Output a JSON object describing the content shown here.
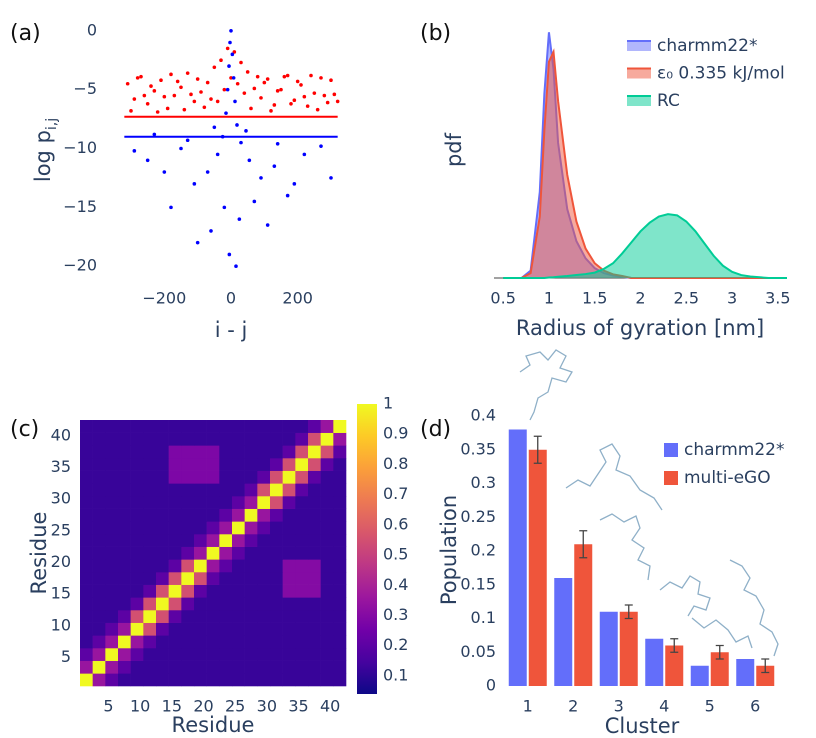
{
  "chart_data": [
    {
      "type": "scatter",
      "label": "(a)",
      "x_label": "i - j",
      "y_label": "log p",
      "y_label_sub": "i,j",
      "xlim": [
        -360,
        360
      ],
      "ylim": [
        -21,
        1
      ],
      "xticks": [
        {
          "value": -200,
          "label": "−200"
        },
        0,
        200
      ],
      "yticks": [
        0,
        {
          "value": -5,
          "label": "−5"
        },
        {
          "value": -10,
          "label": "−10"
        },
        {
          "value": -15,
          "label": "−15"
        },
        {
          "value": -20,
          "label": "−20"
        }
      ],
      "series": [
        {
          "color": "#ff0000",
          "x": [
            -310,
            -290,
            -270,
            -250,
            -230,
            -210,
            -190,
            -170,
            -150,
            -130,
            -110,
            -90,
            -70,
            -50,
            -30,
            -10,
            10,
            30,
            50,
            70,
            90,
            110,
            130,
            150,
            170,
            190,
            210,
            230,
            250,
            270,
            290,
            310,
            -300,
            -280,
            -260,
            -240,
            -220,
            -200,
            -180,
            -160,
            -140,
            -120,
            -100,
            -80,
            -60,
            -40,
            -20,
            0,
            20,
            40,
            60,
            80,
            100,
            120,
            140,
            160,
            180,
            200,
            220,
            240,
            260,
            280,
            300,
            320
          ],
          "values": [
            -4.5,
            -5.8,
            -3.9,
            -6.2,
            -5.1,
            -4.2,
            -6.6,
            -5.5,
            -4.8,
            -3.6,
            -6.0,
            -5.2,
            -4.4,
            -3.1,
            -2.5,
            -1.5,
            -1.8,
            -2.7,
            -3.5,
            -4.9,
            -5.7,
            -4.1,
            -6.3,
            -5.0,
            -3.8,
            -5.9,
            -4.6,
            -6.4,
            -5.3,
            -4.0,
            -6.1,
            -5.4,
            -6.8,
            -4.0,
            -5.5,
            -4.7,
            -6.9,
            -5.6,
            -3.7,
            -4.3,
            -6.7,
            -5.4,
            -4.1,
            -6.5,
            -5.8,
            -6.0,
            -5.0,
            -4.0,
            -4.5,
            -5.3,
            -6.6,
            -3.9,
            -4.4,
            -6.8,
            -5.1,
            -3.9,
            -6.2,
            -4.3,
            -5.6,
            -3.8,
            -6.7,
            -5.5,
            -4.2,
            -6.0
          ]
        },
        {
          "color": "#0000ff",
          "x": [
            0,
            -3,
            4,
            -6,
            8,
            -10,
            12,
            -15,
            18,
            -25,
            30,
            -40,
            55,
            -70,
            90,
            -110,
            130,
            -150,
            170,
            -200,
            220,
            -250,
            270,
            -290,
            300,
            -20,
            25,
            -60,
            70,
            -100,
            110,
            -5,
            15,
            -180,
            190,
            45,
            -50,
            -130,
            140,
            -230
          ],
          "values": [
            0,
            -1,
            -2,
            -3,
            -4,
            -5,
            -6,
            -7,
            -8,
            -9,
            -9.5,
            -10.5,
            -11,
            -12,
            -12.5,
            -13,
            -11.5,
            -10,
            -14,
            -12,
            -10.5,
            -11,
            -9.8,
            -10.2,
            -12.5,
            -15,
            -16,
            -17,
            -14.5,
            -18,
            -16.5,
            -19,
            -20,
            -15,
            -13,
            -8.5,
            -8.2,
            -9.3,
            -9.6,
            -8.8
          ]
        },
        {
          "type": "line",
          "color": "#ff0000",
          "x": [
            -320,
            320
          ],
          "values": [
            -7.3,
            -7.3
          ]
        },
        {
          "type": "line",
          "color": "#0000ff",
          "x": [
            -320,
            320
          ],
          "values": [
            -9.0,
            -9.0
          ]
        }
      ]
    },
    {
      "type": "line",
      "label": "(b)",
      "x_label": "Radius of gyration [nm]",
      "y_label": "pdf",
      "legend": "top-right",
      "xlim": [
        0.4,
        3.6
      ],
      "ylim": [
        0,
        1.05
      ],
      "xticks": [
        0.5,
        1,
        1.5,
        2,
        2.5,
        3,
        3.5
      ],
      "x": [
        0.5,
        0.7,
        0.8,
        0.9,
        0.95,
        1.0,
        1.05,
        1.1,
        1.2,
        1.3,
        1.4,
        1.5,
        1.6,
        1.7,
        1.8,
        1.9,
        2.0,
        2.1,
        2.2,
        2.3,
        2.4,
        2.5,
        2.6,
        2.7,
        2.8,
        2.9,
        3.0,
        3.1,
        3.2,
        3.4,
        3.6
      ],
      "series": [
        {
          "name": "charmm22*",
          "color": "#636efa",
          "values": [
            0,
            0,
            0.03,
            0.35,
            0.75,
            1.0,
            0.85,
            0.55,
            0.28,
            0.15,
            0.08,
            0.04,
            0.02,
            0.01,
            0.005,
            0,
            0,
            0,
            0,
            0,
            0,
            0,
            0,
            0,
            0,
            0,
            0,
            0,
            0,
            0,
            0
          ]
        },
        {
          "name": "ε₀ 0.335 kJ/mol",
          "color": "#ef553b",
          "values": [
            0,
            0,
            0.02,
            0.25,
            0.6,
            0.88,
            0.92,
            0.72,
            0.42,
            0.23,
            0.12,
            0.06,
            0.03,
            0.015,
            0.008,
            0,
            0,
            0,
            0,
            0,
            0,
            0,
            0,
            0,
            0,
            0,
            0,
            0,
            0,
            0,
            0
          ]
        },
        {
          "name": "RC",
          "color": "#00cc96",
          "values": [
            0,
            0,
            0,
            0,
            0,
            0.002,
            0.003,
            0.005,
            0.008,
            0.012,
            0.016,
            0.022,
            0.037,
            0.06,
            0.1,
            0.145,
            0.19,
            0.225,
            0.25,
            0.26,
            0.255,
            0.23,
            0.19,
            0.14,
            0.09,
            0.05,
            0.025,
            0.012,
            0.006,
            0,
            0
          ]
        }
      ]
    },
    {
      "type": "heatmap",
      "label": "(c)",
      "x_label": "Residue",
      "y_label": "Residue",
      "xlim": [
        0.5,
        42.5
      ],
      "ylim": [
        0.5,
        42.5
      ],
      "xticks": [
        5,
        10,
        15,
        20,
        25,
        30,
        35,
        40
      ],
      "yticks": [
        5,
        10,
        15,
        20,
        25,
        30,
        35,
        40
      ],
      "xbins": [
        0.5,
        2.5,
        4.5,
        6.5,
        8.5,
        10.5,
        12.5,
        14.5,
        16.5,
        18.5,
        20.5,
        22.5,
        24.5,
        26.5,
        28.5,
        30.5,
        32.5,
        34.5,
        36.5,
        38.5,
        40.5,
        42.5
      ],
      "ybins": [
        0.5,
        2.5,
        4.5,
        6.5,
        8.5,
        10.5,
        12.5,
        14.5,
        16.5,
        18.5,
        20.5,
        22.5,
        24.5,
        26.5,
        28.5,
        30.5,
        32.5,
        34.5,
        36.5,
        38.5,
        40.5,
        42.5
      ],
      "zlim": [
        0.04,
        1
      ],
      "zticks": [
        0.1,
        0.2,
        0.3,
        0.4,
        0.5,
        0.6,
        0.7,
        0.8,
        0.9,
        1
      ],
      "colorscale": [
        "#0d0887",
        "#46039f",
        "#7201a8",
        "#9c179e",
        "#bd3786",
        "#d8576b",
        "#ed7953",
        "#fb9f3a",
        "#fdca26",
        "#f0f921"
      ],
      "z": [
        [
          1,
          0.35,
          0.2,
          0.12,
          0.12,
          0.12,
          0.12,
          0.12,
          0.12,
          0.12,
          0.12,
          0.12,
          0.12,
          0.12,
          0.12,
          0.12,
          0.12,
          0.12,
          0.12,
          0.12,
          0.12
        ],
        [
          0.35,
          1,
          0.35,
          0.2,
          0.12,
          0.12,
          0.12,
          0.12,
          0.12,
          0.12,
          0.12,
          0.12,
          0.12,
          0.12,
          0.12,
          0.12,
          0.12,
          0.12,
          0.12,
          0.12,
          0.12
        ],
        [
          0.2,
          0.35,
          1,
          0.35,
          0.2,
          0.12,
          0.12,
          0.12,
          0.12,
          0.12,
          0.12,
          0.12,
          0.12,
          0.12,
          0.12,
          0.12,
          0.12,
          0.12,
          0.12,
          0.12,
          0.12
        ],
        [
          0.12,
          0.2,
          0.35,
          1,
          0.35,
          0.2,
          0.12,
          0.12,
          0.12,
          0.12,
          0.12,
          0.12,
          0.12,
          0.12,
          0.12,
          0.12,
          0.12,
          0.12,
          0.12,
          0.12,
          0.12
        ],
        [
          0.12,
          0.12,
          0.2,
          0.35,
          1,
          0.55,
          0.2,
          0.12,
          0.12,
          0.12,
          0.12,
          0.12,
          0.12,
          0.12,
          0.12,
          0.12,
          0.12,
          0.12,
          0.12,
          0.12,
          0.12
        ],
        [
          0.12,
          0.12,
          0.12,
          0.2,
          0.55,
          1,
          0.55,
          0.2,
          0.12,
          0.12,
          0.12,
          0.12,
          0.12,
          0.12,
          0.12,
          0.12,
          0.12,
          0.12,
          0.12,
          0.12,
          0.12
        ],
        [
          0.12,
          0.12,
          0.12,
          0.12,
          0.2,
          0.55,
          1,
          0.55,
          0.2,
          0.12,
          0.12,
          0.12,
          0.12,
          0.12,
          0.12,
          0.12,
          0.12,
          0.12,
          0.12,
          0.12,
          0.12
        ],
        [
          0.12,
          0.12,
          0.12,
          0.12,
          0.12,
          0.2,
          0.55,
          1,
          0.55,
          0.2,
          0.12,
          0.12,
          0.12,
          0.12,
          0.12,
          0.12,
          0.3,
          0.3,
          0.3,
          0.12,
          0.12
        ],
        [
          0.12,
          0.12,
          0.12,
          0.12,
          0.12,
          0.12,
          0.2,
          0.55,
          1,
          0.55,
          0.2,
          0.12,
          0.12,
          0.12,
          0.12,
          0.12,
          0.3,
          0.3,
          0.3,
          0.12,
          0.12
        ],
        [
          0.12,
          0.12,
          0.12,
          0.12,
          0.12,
          0.12,
          0.12,
          0.2,
          0.55,
          1,
          0.35,
          0.2,
          0.12,
          0.12,
          0.12,
          0.12,
          0.3,
          0.3,
          0.3,
          0.12,
          0.12
        ],
        [
          0.12,
          0.12,
          0.12,
          0.12,
          0.12,
          0.12,
          0.12,
          0.12,
          0.2,
          0.35,
          1,
          0.35,
          0.2,
          0.12,
          0.12,
          0.12,
          0.12,
          0.12,
          0.12,
          0.12,
          0.12
        ],
        [
          0.12,
          0.12,
          0.12,
          0.12,
          0.12,
          0.12,
          0.12,
          0.12,
          0.12,
          0.2,
          0.35,
          1,
          0.35,
          0.2,
          0.12,
          0.12,
          0.12,
          0.12,
          0.12,
          0.12,
          0.12
        ],
        [
          0.12,
          0.12,
          0.12,
          0.12,
          0.12,
          0.12,
          0.12,
          0.12,
          0.12,
          0.12,
          0.2,
          0.35,
          1,
          0.35,
          0.2,
          0.12,
          0.12,
          0.12,
          0.12,
          0.12,
          0.12
        ],
        [
          0.12,
          0.12,
          0.12,
          0.12,
          0.12,
          0.12,
          0.12,
          0.12,
          0.12,
          0.12,
          0.12,
          0.2,
          0.35,
          1,
          0.35,
          0.2,
          0.12,
          0.12,
          0.12,
          0.12,
          0.12
        ],
        [
          0.12,
          0.12,
          0.12,
          0.12,
          0.12,
          0.12,
          0.12,
          0.12,
          0.12,
          0.12,
          0.12,
          0.12,
          0.2,
          0.35,
          1,
          0.55,
          0.2,
          0.12,
          0.12,
          0.12,
          0.12
        ],
        [
          0.12,
          0.12,
          0.12,
          0.12,
          0.12,
          0.12,
          0.12,
          0.12,
          0.12,
          0.12,
          0.12,
          0.12,
          0.12,
          0.2,
          0.55,
          1,
          0.55,
          0.2,
          0.12,
          0.12,
          0.12
        ],
        [
          0.12,
          0.12,
          0.12,
          0.12,
          0.12,
          0.12,
          0.12,
          0.28,
          0.28,
          0.28,
          0.28,
          0.12,
          0.12,
          0.12,
          0.2,
          0.55,
          1,
          0.55,
          0.2,
          0.12,
          0.12
        ],
        [
          0.12,
          0.12,
          0.12,
          0.12,
          0.12,
          0.12,
          0.12,
          0.28,
          0.28,
          0.28,
          0.28,
          0.12,
          0.12,
          0.12,
          0.12,
          0.2,
          0.55,
          1,
          0.55,
          0.2,
          0.12
        ],
        [
          0.12,
          0.12,
          0.12,
          0.12,
          0.12,
          0.12,
          0.12,
          0.28,
          0.28,
          0.28,
          0.28,
          0.12,
          0.12,
          0.12,
          0.12,
          0.12,
          0.2,
          0.55,
          1,
          0.55,
          0.2
        ],
        [
          0.12,
          0.12,
          0.12,
          0.12,
          0.12,
          0.12,
          0.12,
          0.12,
          0.12,
          0.12,
          0.12,
          0.12,
          0.12,
          0.12,
          0.12,
          0.12,
          0.12,
          0.2,
          0.55,
          1,
          0.35
        ],
        [
          0.12,
          0.12,
          0.12,
          0.12,
          0.12,
          0.12,
          0.12,
          0.12,
          0.12,
          0.12,
          0.12,
          0.12,
          0.12,
          0.12,
          0.12,
          0.12,
          0.12,
          0.12,
          0.2,
          0.35,
          1
        ]
      ]
    },
    {
      "type": "bar",
      "label": "(d)",
      "x_label": "Cluster",
      "y_label": "Population",
      "legend": "top-right",
      "categories": [
        "1",
        "2",
        "3",
        "4",
        "5",
        "6"
      ],
      "ylim": [
        0,
        0.4
      ],
      "yticks": [
        0,
        0.05,
        0.1,
        0.15,
        0.2,
        0.25,
        0.3,
        0.35,
        0.4
      ],
      "series": [
        {
          "name": "charmm22*",
          "color": "#636efa",
          "values": [
            0.38,
            0.16,
            0.11,
            0.07,
            0.03,
            0.04
          ]
        },
        {
          "name": "multi-eGO",
          "color": "#ef553b",
          "values": [
            0.35,
            0.21,
            0.11,
            0.06,
            0.05,
            0.03
          ],
          "errors": [
            0.02,
            0.02,
            0.01,
            0.01,
            0.01,
            0.01
          ]
        }
      ]
    }
  ]
}
